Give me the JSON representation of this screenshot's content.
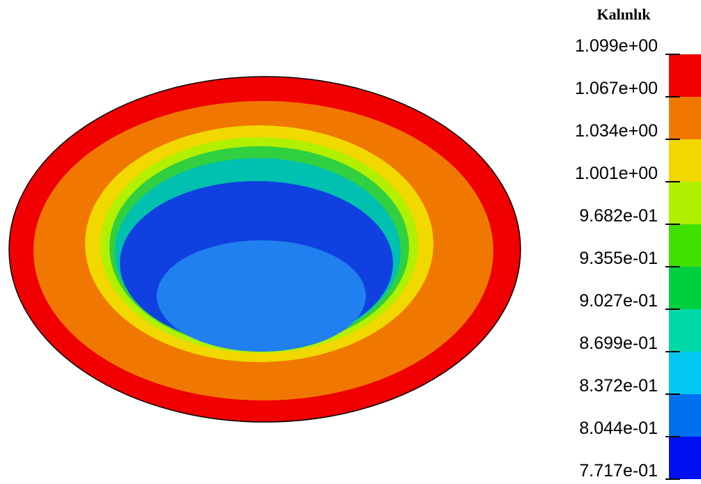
{
  "legend": {
    "title": "Kalınlık",
    "labels": [
      "1.099e+00",
      "1.067e+00",
      "1.034e+00",
      "1.001e+00",
      "9.682e-01",
      "9.355e-01",
      "9.027e-01",
      "8.699e-01",
      "8.372e-01",
      "8.044e-01",
      "7.717e-01"
    ],
    "colors": [
      "#f00000",
      "#f07800",
      "#f0d800",
      "#b0f000",
      "#40e000",
      "#00d040",
      "#00d8a8",
      "#00c8f0",
      "#0070f0",
      "#0010f0"
    ]
  }
}
